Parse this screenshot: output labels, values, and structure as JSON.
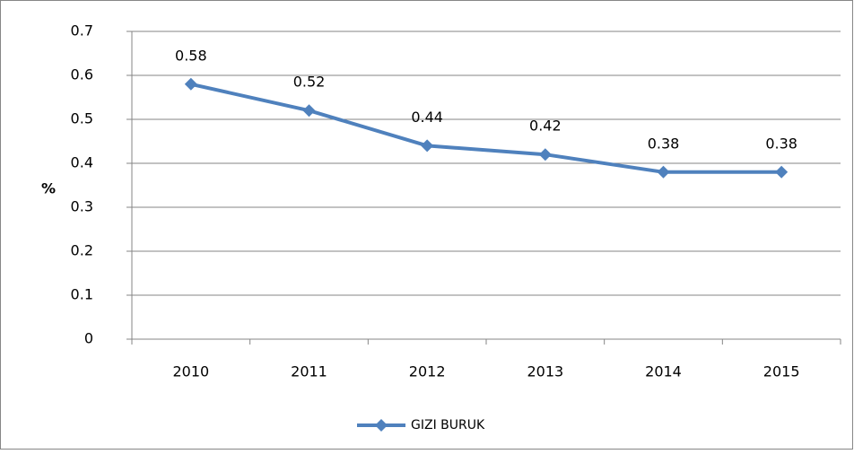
{
  "chart_data": {
    "type": "line",
    "y_label": "%",
    "categories": [
      "2010",
      "2011",
      "2012",
      "2013",
      "2014",
      "2015"
    ],
    "series": [
      {
        "name": "GIZI BURUK",
        "color": "#4f81bd",
        "values": [
          0.58,
          0.52,
          0.44,
          0.42,
          0.38,
          0.38
        ]
      }
    ],
    "ylim": [
      0,
      0.7
    ],
    "yticks": [
      0,
      0.1,
      0.2,
      0.3,
      0.4,
      0.5,
      0.6,
      0.7
    ],
    "grid": true,
    "legend": "bottom",
    "data_labels": true
  }
}
